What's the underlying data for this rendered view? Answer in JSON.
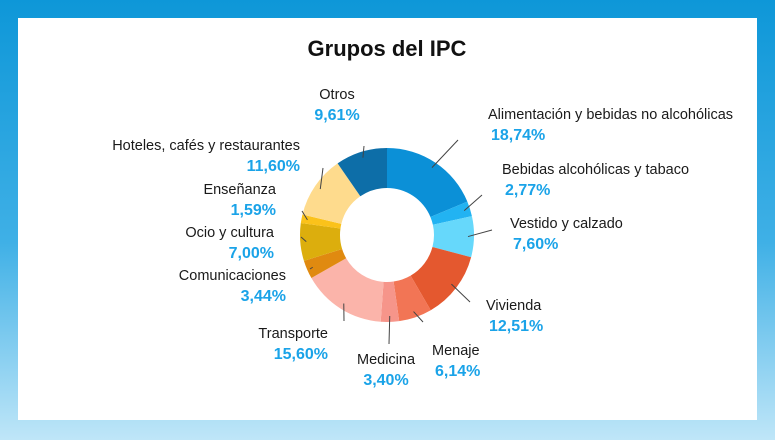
{
  "chart_data": {
    "type": "pie",
    "donut": true,
    "title": "Grupos del IPC",
    "unit": "%",
    "slices": [
      {
        "name": "Alimentación y bebidas no alcohólicas",
        "label": "18,74%",
        "value": 18.74,
        "color": "#0b90d7"
      },
      {
        "name": "Bebidas alcohólicas y tabaco",
        "label": "2,77%",
        "value": 2.77,
        "color": "#22b3f2"
      },
      {
        "name": "Vestido y calzado",
        "label": "7,60%",
        "value": 7.6,
        "color": "#66d8fb"
      },
      {
        "name": "Vivienda",
        "label": "12,51%",
        "value": 12.51,
        "color": "#e4582f"
      },
      {
        "name": "Menaje",
        "label": "6,14%",
        "value": 6.14,
        "color": "#f27555"
      },
      {
        "name": "Medicina",
        "label": "3,40%",
        "value": 3.4,
        "color": "#f6958a"
      },
      {
        "name": "Transporte",
        "label": "15,60%",
        "value": 15.6,
        "color": "#fbb4aa"
      },
      {
        "name": "Comunicaciones",
        "label": "3,44%",
        "value": 3.44,
        "color": "#e08a10"
      },
      {
        "name": "Ocio y cultura",
        "label": "7,00%",
        "value": 7.0,
        "color": "#dcae0d"
      },
      {
        "name": "Enseñanza",
        "label": "1,59%",
        "value": 1.59,
        "color": "#fbc21a"
      },
      {
        "name": "Hoteles, cafés y restaurantes",
        "label": "11,60%",
        "value": 11.6,
        "color": "#fedb8d"
      },
      {
        "name": "Otros",
        "label": "9,61%",
        "value": 9.61,
        "color": "#0d6ea8"
      }
    ]
  }
}
